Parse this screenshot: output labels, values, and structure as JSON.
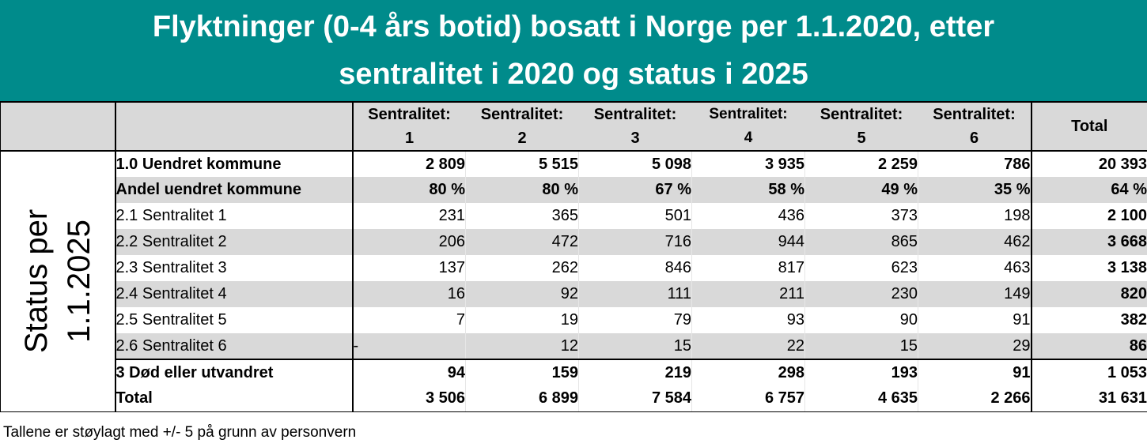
{
  "title": {
    "line1": "Flyktninger (0-4 års botid) bosatt i Norge per 1.1.2020, etter",
    "line2": "sentralitet i 2020 og status i 2025"
  },
  "side_label": {
    "line1": "Status per",
    "line2": "1.1.2025"
  },
  "chart_data": {
    "type": "table",
    "columns": [
      {
        "top": "Sentralitet:",
        "bottom": "1"
      },
      {
        "top": "Sentralitet:",
        "bottom": "2"
      },
      {
        "top": "Sentralitet:",
        "bottom": "3"
      },
      {
        "top": "Sentralitet:",
        "bottom": "4"
      },
      {
        "top": "Sentralitet:",
        "bottom": "5"
      },
      {
        "top": "Sentralitet:",
        "bottom": "6"
      }
    ],
    "total_header": "Total",
    "rows": [
      {
        "label": "1.0 Uendret kommune",
        "values": [
          "2 809",
          "5 515",
          "5 098",
          "3 935",
          "2 259",
          "786"
        ],
        "total": "20 393"
      },
      {
        "label": "Andel uendret kommune",
        "values": [
          "80 %",
          "80 %",
          "67 %",
          "58 %",
          "49 %",
          "35 %"
        ],
        "total": "64 %"
      },
      {
        "label": "2.1 Sentralitet 1",
        "values": [
          "231",
          "365",
          "501",
          "436",
          "373",
          "198"
        ],
        "total": "2 100"
      },
      {
        "label": "2.2 Sentralitet 2",
        "values": [
          "206",
          "472",
          "716",
          "944",
          "865",
          "462"
        ],
        "total": "3 668"
      },
      {
        "label": "2.3 Sentralitet 3",
        "values": [
          "137",
          "262",
          "846",
          "817",
          "623",
          "463"
        ],
        "total": "3 138"
      },
      {
        "label": "2.4 Sentralitet 4",
        "values": [
          "16",
          "92",
          "111",
          "211",
          "230",
          "149"
        ],
        "total": "820"
      },
      {
        "label": "2.5 Sentralitet 5",
        "values": [
          "7",
          "19",
          "79",
          "93",
          "90",
          "91"
        ],
        "total": "382"
      },
      {
        "label": "2.6 Sentralitet 6",
        "values": [
          "-",
          "12",
          "15",
          "22",
          "15",
          "29"
        ],
        "total": "86"
      },
      {
        "label": "3 Død eller utvandret",
        "values": [
          "94",
          "159",
          "219",
          "298",
          "193",
          "91"
        ],
        "total": "1 053"
      },
      {
        "label": "Total",
        "values": [
          "3 506",
          "6 899",
          "7 584",
          "6 757",
          "4 635",
          "2 266"
        ],
        "total": "31 631"
      }
    ]
  },
  "note": "Tallene  er støylagt med +/- 5 på grunn av personvern",
  "colors": {
    "title_bg": "#008b8b",
    "shade": "#d9d9d9"
  }
}
